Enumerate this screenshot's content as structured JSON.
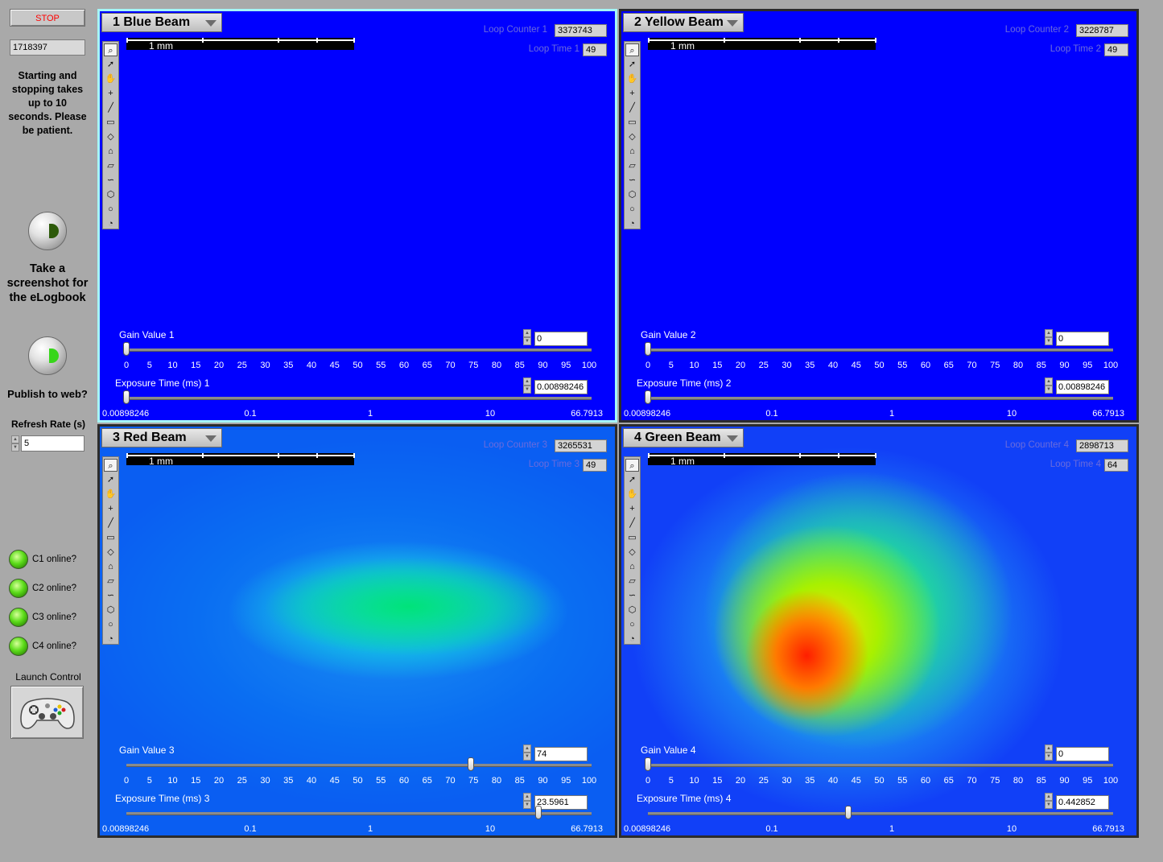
{
  "left": {
    "stop_label": "STOP",
    "iteration_value": "1718397",
    "note": "Starting and stopping takes up to 10 seconds. Please be patient.",
    "screenshot_label": "Take a screenshot for the eLogbook",
    "publish_label": "Publish to web?",
    "refresh_label": "Refresh Rate (s)",
    "refresh_value": "5",
    "leds": [
      "C1 online?",
      "C2 online?",
      "C3 online?",
      "C4 online?"
    ],
    "launch_label": "Launch Control",
    "screenshot_indicator_color": "#2d5a0a",
    "publish_indicator_color": "#37d61a",
    "led_color": "#5cdc1a"
  },
  "panels": [
    {
      "title": "1 Blue Beam",
      "loop_counter_label": "Loop Counter 1",
      "loop_counter": "3373743",
      "loop_time_label": "Loop Time 1",
      "loop_time": "49",
      "gain_label": "Gain Value 1",
      "gain_value": "0",
      "gain_fraction": 0,
      "exposure_label": "Exposure Time (ms) 1",
      "exposure_value": "0.00898246",
      "exposure_fraction": 0,
      "scale_label": "1 mm",
      "background": "#0000ff",
      "selected": true
    },
    {
      "title": "2 Yellow Beam",
      "loop_counter_label": "Loop Counter 2",
      "loop_counter": "3228787",
      "loop_time_label": "Loop Time 2",
      "loop_time": "49",
      "gain_label": "Gain Value 2",
      "gain_value": "0",
      "gain_fraction": 0,
      "exposure_label": "Exposure Time (ms) 2",
      "exposure_value": "0.00898246",
      "exposure_fraction": 0,
      "scale_label": "1 mm",
      "background": "#0000ff",
      "selected": false
    },
    {
      "title": "3 Red Beam",
      "loop_counter_label": "Loop Counter 3",
      "loop_counter": "3265531",
      "loop_time_label": "Loop Time 3",
      "loop_time": "49",
      "gain_label": "Gain Value 3",
      "gain_value": "74",
      "gain_fraction": 0.74,
      "exposure_label": "Exposure Time (ms) 3",
      "exposure_value": "23.5961",
      "exposure_fraction": 0.885,
      "scale_label": "1 mm",
      "background": "#0a5ef2",
      "selected": false
    },
    {
      "title": "4 Green Beam",
      "loop_counter_label": "Loop Counter 4",
      "loop_counter": "2898713",
      "loop_time_label": "Loop Time 4",
      "loop_time": "64",
      "gain_label": "Gain Value 4",
      "gain_value": "0",
      "gain_fraction": 0,
      "exposure_label": "Exposure Time (ms) 4",
      "exposure_value": "0.442852",
      "exposure_fraction": 0.43,
      "scale_label": "1 mm",
      "background": "#1140f7",
      "selected": false
    }
  ],
  "gain_ticks": [
    "0",
    "5",
    "10",
    "15",
    "20",
    "25",
    "30",
    "35",
    "40",
    "45",
    "50",
    "55",
    "60",
    "65",
    "70",
    "75",
    "80",
    "85",
    "90",
    "95",
    "100"
  ],
  "exposure_ticks": [
    "0.00898246",
    "0.1",
    "1",
    "10",
    "66.7913"
  ],
  "tools": [
    "zoom-icon",
    "pointer-icon",
    "pan-icon",
    "crosshair-icon",
    "line-icon",
    "rectangle-icon",
    "rotated-rectangle-icon",
    "annulus-icon",
    "freehand-icon",
    "polyline-icon",
    "polygon-icon",
    "oval-icon",
    "arc-icon"
  ]
}
